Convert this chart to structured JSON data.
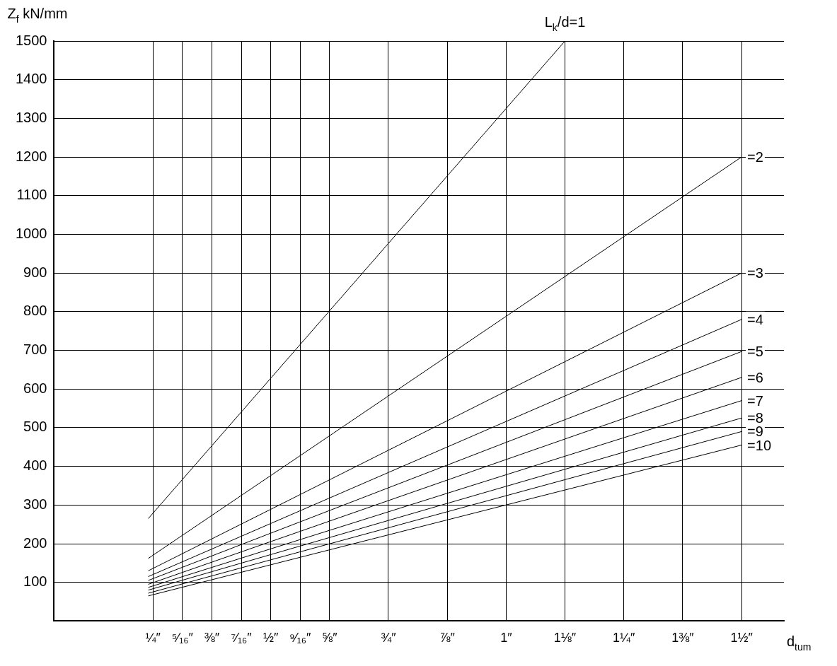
{
  "chart_data": {
    "type": "line",
    "xlabel": "d$_{tum}$",
    "ylabel": "Z$_{f}$ kN/mm",
    "xlim": [
      0.04,
      1.59
    ],
    "ylim": [
      0,
      1500
    ],
    "xticks": [
      {
        "value": 0.25,
        "label": "¼″"
      },
      {
        "value": 0.3125,
        "label": "⁵⁄₁₆″"
      },
      {
        "value": 0.375,
        "label": "⅜″"
      },
      {
        "value": 0.4375,
        "label": "⁷⁄₁₆″"
      },
      {
        "value": 0.5,
        "label": "½″"
      },
      {
        "value": 0.5625,
        "label": "⁹⁄₁₆″"
      },
      {
        "value": 0.625,
        "label": "⅝″"
      },
      {
        "value": 0.75,
        "label": "¾″"
      },
      {
        "value": 0.875,
        "label": "⅞″"
      },
      {
        "value": 1,
        "label": "1″"
      },
      {
        "value": 1.125,
        "label": "1⅛″"
      },
      {
        "value": 1.25,
        "label": "1¼″"
      },
      {
        "value": 1.375,
        "label": "1⅜″"
      },
      {
        "value": 1.5,
        "label": "1½″"
      }
    ],
    "yticks": [
      100,
      200,
      300,
      400,
      500,
      600,
      700,
      800,
      900,
      1000,
      1100,
      1200,
      1300,
      1400,
      1500
    ],
    "grid": true,
    "marker": "none",
    "line_style": "solid",
    "series": [
      {
        "name": "L$_{k}$/d=1",
        "color": "#000000",
        "x": [
          0.24,
          1.125
        ],
        "values": [
          265,
          1500
        ]
      },
      {
        "name": "=2",
        "color": "#000000",
        "x": [
          0.24,
          1.5
        ],
        "values": [
          162,
          1200
        ]
      },
      {
        "name": "=3",
        "color": "#000000",
        "x": [
          0.24,
          1.5
        ],
        "values": [
          130,
          900
        ]
      },
      {
        "name": "=4",
        "color": "#000000",
        "x": [
          0.24,
          1.5
        ],
        "values": [
          115,
          780
        ]
      },
      {
        "name": "=5",
        "color": "#000000",
        "x": [
          0.24,
          1.5
        ],
        "values": [
          105,
          697
        ]
      },
      {
        "name": "=6",
        "color": "#000000",
        "x": [
          0.24,
          1.5
        ],
        "values": [
          95,
          630
        ]
      },
      {
        "name": "=7",
        "color": "#000000",
        "x": [
          0.24,
          1.5
        ],
        "values": [
          87,
          570
        ]
      },
      {
        "name": "=8",
        "color": "#000000",
        "x": [
          0.24,
          1.5
        ],
        "values": [
          80,
          525
        ]
      },
      {
        "name": "=9",
        "color": "#000000",
        "x": [
          0.24,
          1.5
        ],
        "values": [
          72,
          490
        ]
      },
      {
        "name": "=10",
        "color": "#000000",
        "x": [
          0.24,
          1.5
        ],
        "values": [
          65,
          455
        ]
      }
    ]
  }
}
